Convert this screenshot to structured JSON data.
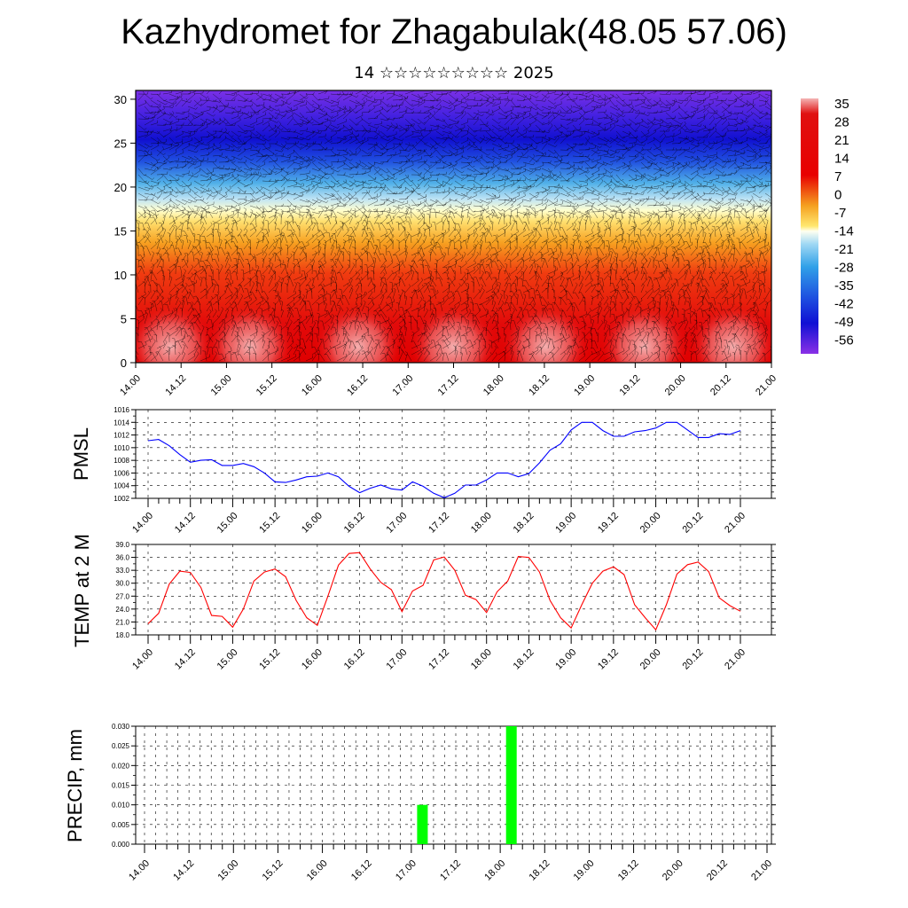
{
  "header": {
    "title": "Kazhydromet for Zhagabulak(48.05 57.06)",
    "subtitle": "14 ☆☆☆☆☆☆☆☆☆ 2025"
  },
  "chart_data": [
    {
      "type": "heatmap",
      "title": "",
      "xlabel": "",
      "ylabel": "",
      "x_ticks": [
        "14.00",
        "14.12",
        "15.00",
        "15.12",
        "16.00",
        "16.12",
        "17.00",
        "17.12",
        "18.00",
        "18.12",
        "19.00",
        "19.12",
        "20.00",
        "20.12",
        "21.00"
      ],
      "y_ticks": [
        0,
        5,
        10,
        15,
        20,
        25,
        30
      ],
      "ylim": [
        0,
        31
      ],
      "colorbar_labels": [
        35,
        28,
        21,
        14,
        7,
        0,
        -7,
        -14,
        -21,
        -28,
        -35,
        -42,
        -49,
        -56
      ],
      "overlay": "wind barbs",
      "colors": {
        "warm": "#e00000",
        "hot": "#f4a0a0",
        "mid": "#ffe066",
        "cold": "#2020e0",
        "top": "#8a2be2"
      }
    },
    {
      "type": "line",
      "ylabel": "PMSL",
      "ylim": [
        1002,
        1016
      ],
      "y_ticks": [
        1002,
        1004,
        1006,
        1008,
        1010,
        1012,
        1014,
        1016
      ],
      "x_ticks": [
        "14.00",
        "14.12",
        "15.00",
        "15.12",
        "16.00",
        "16.12",
        "17.00",
        "17.12",
        "18.00",
        "18.12",
        "19.00",
        "19.12",
        "20.00",
        "20.12",
        "21.00"
      ],
      "color": "#0000ff",
      "values": [
        1011.1,
        1011.3,
        1010.3,
        1008.9,
        1007.7,
        1008.0,
        1008.1,
        1007.2,
        1007.2,
        1007.5,
        1007.0,
        1006.0,
        1004.6,
        1004.5,
        1004.9,
        1005.4,
        1005.5,
        1006.0,
        1005.4,
        1003.9,
        1002.9,
        1003.6,
        1004.1,
        1003.5,
        1003.3,
        1004.6,
        1003.9,
        1002.8,
        1002.1,
        1002.8,
        1004.1,
        1004.1,
        1004.9,
        1006.0,
        1006.0,
        1005.4,
        1005.9,
        1007.6,
        1009.6,
        1010.6,
        1012.8,
        1014.0,
        1014.0,
        1012.7,
        1011.8,
        1011.8,
        1012.5,
        1012.7,
        1013.1,
        1014.0,
        1014.0,
        1012.8,
        1011.6,
        1011.6,
        1012.2,
        1012.1,
        1012.7
      ]
    },
    {
      "type": "line",
      "ylabel": "TEMP at 2 M",
      "ylim": [
        18,
        39
      ],
      "y_ticks": [
        "18.0",
        "21.0",
        "24.0",
        "27.0",
        "30.0",
        "33.0",
        "36.0",
        "39.0"
      ],
      "x_ticks": [
        "14.00",
        "14.12",
        "15.00",
        "15.12",
        "16.00",
        "16.12",
        "17.00",
        "17.12",
        "18.00",
        "18.12",
        "19.00",
        "19.12",
        "20.00",
        "20.12",
        "21.00"
      ],
      "color": "#ff0000",
      "values": [
        20.6,
        23.0,
        29.8,
        32.8,
        32.5,
        29.0,
        22.5,
        22.3,
        19.8,
        24.0,
        30.5,
        32.6,
        33.3,
        31.5,
        26.0,
        22.0,
        20.2,
        27.0,
        34.2,
        36.9,
        37.1,
        33.3,
        30.2,
        28.5,
        23.4,
        28.2,
        29.5,
        35.4,
        36.1,
        33.0,
        27.2,
        26.2,
        23.2,
        28.0,
        30.5,
        36.2,
        36.0,
        32.6,
        26.0,
        22.0,
        19.6,
        25.0,
        30.0,
        32.8,
        33.8,
        32.0,
        25.0,
        22.0,
        19.2,
        25.0,
        32.1,
        34.3,
        34.9,
        32.7,
        26.6,
        24.8,
        23.5
      ]
    },
    {
      "type": "bar",
      "ylabel": "PRECIP, mm",
      "ylim": [
        0,
        0.03
      ],
      "y_ticks": [
        "0.000",
        "0.005",
        "0.010",
        "0.015",
        "0.020",
        "0.025",
        "0.030"
      ],
      "x_ticks": [
        "14.00",
        "14.12",
        "15.00",
        "15.12",
        "16.00",
        "16.12",
        "17.00",
        "17.12",
        "18.00",
        "18.12",
        "19.00",
        "19.12",
        "20.00",
        "20.12",
        "21.00"
      ],
      "color": "#00ff00",
      "bars": [
        {
          "x": "17.03",
          "value": 0.01
        },
        {
          "x": "18.03",
          "value": 0.03
        }
      ]
    }
  ]
}
